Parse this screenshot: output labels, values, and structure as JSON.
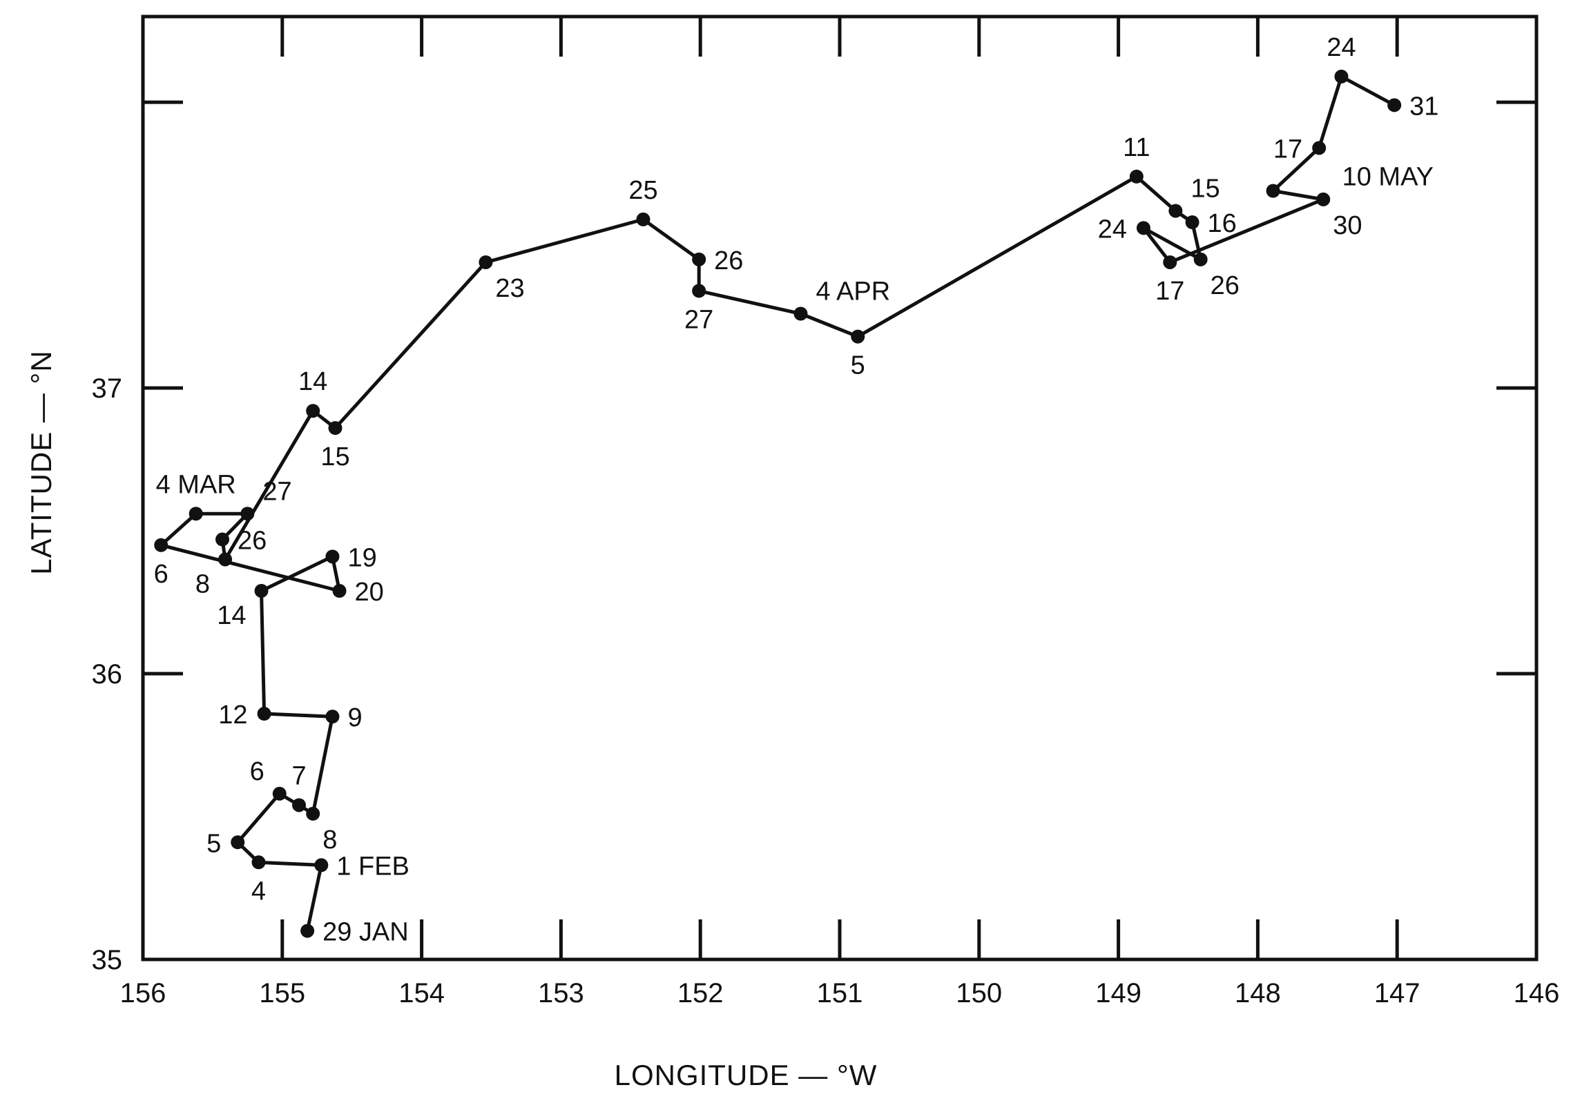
{
  "chart_data": {
    "type": "line",
    "title": "",
    "xlabel": "LONGITUDE — °W",
    "ylabel": "LATITUDE — °N",
    "xlim": [
      156,
      146
    ],
    "ylim": [
      35,
      38.3
    ],
    "x_axis_reversed": true,
    "grid": false,
    "x_tick_labels": [
      "156",
      "155",
      "154",
      "153",
      "152",
      "151",
      "150",
      "149",
      "148",
      "147",
      "146"
    ],
    "x_tick_values": [
      156,
      155,
      154,
      153,
      152,
      151,
      150,
      149,
      148,
      147,
      146
    ],
    "y_tick_labels": [
      "35",
      "36",
      "37"
    ],
    "y_tick_values": [
      35,
      36,
      37
    ],
    "y_minor_ticks": [
      37.0,
      38.0
    ],
    "series": [
      {
        "line_color": "#111111",
        "points": [
          {
            "label": "29 JAN",
            "lon": 154.82,
            "lat": 35.1,
            "label_pos": "right"
          },
          {
            "label": "1 FEB",
            "lon": 154.72,
            "lat": 35.33,
            "label_pos": "right"
          },
          {
            "label": "4",
            "lon": 155.17,
            "lat": 35.34,
            "label_pos": "below"
          },
          {
            "label": "5",
            "lon": 155.32,
            "lat": 35.41,
            "label_pos": "left"
          },
          {
            "label": "6",
            "lon": 155.02,
            "lat": 35.58,
            "label_pos": "above-left"
          },
          {
            "label": "7",
            "lon": 154.88,
            "lat": 35.54,
            "label_pos": "above"
          },
          {
            "label": "8",
            "lon": 154.78,
            "lat": 35.51,
            "label_pos": "below-right"
          },
          {
            "label": "9",
            "lon": 154.64,
            "lat": 35.85,
            "label_pos": "right"
          },
          {
            "label": "12",
            "lon": 155.13,
            "lat": 35.86,
            "label_pos": "left"
          },
          {
            "label": "14",
            "lon": 155.15,
            "lat": 36.29,
            "label_pos": "below-left"
          },
          {
            "label": "19",
            "lon": 154.64,
            "lat": 36.41,
            "label_pos": "right"
          },
          {
            "label": "20",
            "lon": 154.59,
            "lat": 36.29,
            "label_pos": "right"
          },
          {
            "label": "6",
            "lon": 155.87,
            "lat": 36.45,
            "label_pos": "below"
          },
          {
            "label": "4 MAR",
            "lon": 155.62,
            "lat": 36.56,
            "label_pos": "above"
          },
          {
            "label": "27",
            "lon": 155.25,
            "lat": 36.56,
            "label_pos": "above-right"
          },
          {
            "label": "26",
            "lon": 155.43,
            "lat": 36.47,
            "label_pos": "right"
          },
          {
            "label": "8",
            "lon": 155.41,
            "lat": 36.4,
            "label_pos": "below-left"
          },
          {
            "label": "14",
            "lon": 154.78,
            "lat": 36.92,
            "label_pos": "above"
          },
          {
            "label": "15",
            "lon": 154.62,
            "lat": 36.86,
            "label_pos": "below"
          },
          {
            "label": "23",
            "lon": 153.54,
            "lat": 37.44,
            "label_pos": "below-right"
          },
          {
            "label": "25",
            "lon": 152.41,
            "lat": 37.59,
            "label_pos": "above"
          },
          {
            "label": "26",
            "lon": 152.01,
            "lat": 37.45,
            "label_pos": "right"
          },
          {
            "label": "27",
            "lon": 152.01,
            "lat": 37.34,
            "label_pos": "below"
          },
          {
            "label": "4 APR",
            "lon": 151.28,
            "lat": 37.26,
            "label_pos": "above-right"
          },
          {
            "label": "5",
            "lon": 150.87,
            "lat": 37.18,
            "label_pos": "below"
          },
          {
            "label": "11",
            "lon": 148.87,
            "lat": 37.74,
            "label_pos": "above"
          },
          {
            "label": "15",
            "lon": 148.59,
            "lat": 37.62,
            "label_pos": "above-right"
          },
          {
            "label": "16",
            "lon": 148.47,
            "lat": 37.58,
            "label_pos": "right"
          },
          {
            "label": "26",
            "lon": 148.41,
            "lat": 37.45,
            "label_pos": "below-right"
          },
          {
            "label": "24",
            "lon": 148.82,
            "lat": 37.56,
            "label_pos": "left"
          },
          {
            "label": "17",
            "lon": 148.63,
            "lat": 37.44,
            "label_pos": "below"
          },
          {
            "label": "30",
            "lon": 147.53,
            "lat": 37.66,
            "label_pos": "below-right"
          },
          {
            "label": "10 MAY",
            "lon": 147.89,
            "lat": 37.69,
            "label_pos": "right-far"
          },
          {
            "label": "17",
            "lon": 147.56,
            "lat": 37.84,
            "label_pos": "left"
          },
          {
            "label": "24",
            "lon": 147.4,
            "lat": 38.09,
            "label_pos": "above"
          },
          {
            "label": "31",
            "lon": 147.02,
            "lat": 37.99,
            "label_pos": "right"
          }
        ]
      }
    ]
  }
}
